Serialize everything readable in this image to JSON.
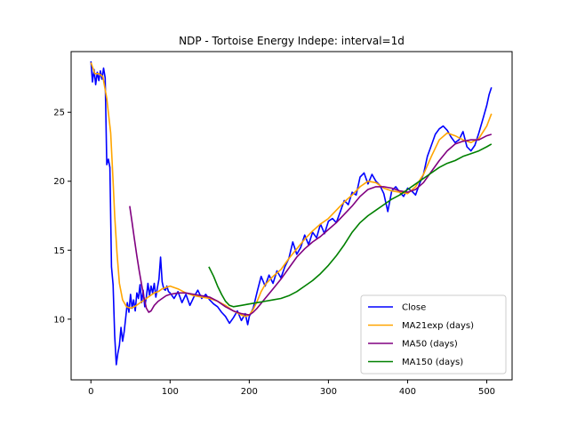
{
  "chart_data": {
    "type": "line",
    "title": "NDP - Tortoise Energy Indepe: interval=1d",
    "xlabel": "",
    "ylabel": "",
    "xlim": [
      -25,
      532
    ],
    "ylim": [
      5.6,
      29.4
    ],
    "xticks": [
      0,
      100,
      200,
      300,
      400,
      500
    ],
    "yticks": [
      10,
      15,
      20,
      25
    ],
    "grid": false,
    "legend_position": "lower right",
    "series": [
      {
        "name": "Close",
        "color": "#0000ff",
        "x": [
          0,
          2,
          4,
          6,
          8,
          10,
          12,
          14,
          16,
          18,
          20,
          22,
          24,
          26,
          28,
          30,
          32,
          34,
          36,
          38,
          40,
          42,
          44,
          46,
          48,
          50,
          52,
          54,
          56,
          58,
          60,
          62,
          64,
          66,
          68,
          70,
          72,
          74,
          76,
          78,
          80,
          82,
          84,
          86,
          88,
          90,
          92,
          94,
          96,
          98,
          100,
          105,
          110,
          115,
          120,
          125,
          130,
          135,
          140,
          145,
          150,
          155,
          160,
          165,
          170,
          175,
          180,
          185,
          190,
          195,
          198,
          200,
          205,
          210,
          215,
          220,
          225,
          230,
          235,
          240,
          245,
          250,
          255,
          260,
          265,
          270,
          275,
          280,
          285,
          290,
          295,
          300,
          305,
          310,
          315,
          320,
          325,
          330,
          335,
          340,
          345,
          350,
          355,
          360,
          365,
          370,
          375,
          380,
          385,
          390,
          395,
          400,
          405,
          410,
          415,
          420,
          425,
          430,
          435,
          440,
          445,
          450,
          455,
          460,
          465,
          470,
          475,
          480,
          485,
          490,
          495,
          500,
          503,
          506
        ],
        "y": [
          28.7,
          27.2,
          28.1,
          27.0,
          27.9,
          27.3,
          28.0,
          27.4,
          28.2,
          27.5,
          21.2,
          21.6,
          21.0,
          13.8,
          12.5,
          8.8,
          6.7,
          7.5,
          8.1,
          9.4,
          8.4,
          9.1,
          10.1,
          11.2,
          10.5,
          11.8,
          10.8,
          11.4,
          10.6,
          11.9,
          11.5,
          12.5,
          11.2,
          12.1,
          10.9,
          11.6,
          12.6,
          11.7,
          12.4,
          11.9,
          12.6,
          11.6,
          12.3,
          12.9,
          14.5,
          12.7,
          12.2,
          12.1,
          12.4,
          12.0,
          11.9,
          11.5,
          12.0,
          11.2,
          11.8,
          11.0,
          11.6,
          12.1,
          11.5,
          11.8,
          11.4,
          11.1,
          10.9,
          10.5,
          10.2,
          9.7,
          10.1,
          10.6,
          9.9,
          10.4,
          9.6,
          10.2,
          10.8,
          12.0,
          13.1,
          12.4,
          13.2,
          12.6,
          13.5,
          13.0,
          13.8,
          14.4,
          15.6,
          14.7,
          15.2,
          16.1,
          15.4,
          16.3,
          15.9,
          16.9,
          16.2,
          17.1,
          17.3,
          17.0,
          17.8,
          18.6,
          18.3,
          19.2,
          19.0,
          20.3,
          20.6,
          19.8,
          20.5,
          20.0,
          19.7,
          19.1,
          17.8,
          19.3,
          19.6,
          19.2,
          18.9,
          19.5,
          19.3,
          19.0,
          19.8,
          20.5,
          21.8,
          22.6,
          23.4,
          23.8,
          24.0,
          23.7,
          23.2,
          22.8,
          23.0,
          23.6,
          22.5,
          22.2,
          22.6,
          23.5,
          24.5,
          25.5,
          26.3,
          26.8
        ]
      },
      {
        "name": "MA21exp (days)",
        "color": "#ffa500",
        "x": [
          0,
          5,
          10,
          15,
          20,
          25,
          28,
          30,
          33,
          36,
          40,
          45,
          50,
          55,
          60,
          65,
          70,
          75,
          80,
          85,
          90,
          95,
          100,
          110,
          120,
          130,
          140,
          150,
          160,
          170,
          180,
          190,
          195,
          200,
          205,
          210,
          215,
          220,
          230,
          240,
          250,
          260,
          270,
          280,
          290,
          300,
          310,
          320,
          330,
          340,
          350,
          360,
          370,
          380,
          390,
          400,
          410,
          420,
          430,
          440,
          450,
          460,
          470,
          480,
          490,
          500,
          506
        ],
        "y": [
          28.6,
          27.8,
          27.8,
          27.6,
          26.0,
          23.5,
          20.0,
          17.5,
          14.8,
          12.6,
          11.4,
          10.9,
          10.8,
          10.9,
          11.1,
          11.3,
          11.5,
          11.7,
          11.9,
          12.0,
          12.2,
          12.3,
          12.4,
          12.2,
          11.9,
          11.7,
          11.6,
          11.5,
          11.3,
          11.0,
          10.6,
          10.3,
          10.2,
          10.3,
          10.7,
          11.3,
          12.0,
          12.5,
          13.1,
          13.6,
          14.4,
          15.1,
          15.8,
          16.4,
          16.9,
          17.3,
          17.9,
          18.5,
          19.0,
          19.6,
          20.0,
          19.9,
          19.5,
          19.3,
          19.2,
          19.1,
          19.6,
          20.5,
          21.8,
          23.0,
          23.5,
          23.3,
          23.0,
          22.8,
          23.1,
          24.0,
          24.9
        ]
      },
      {
        "name": "MA50 (days)",
        "color": "#800080",
        "x": [
          49,
          52,
          55,
          58,
          61,
          64,
          67,
          70,
          73,
          76,
          80,
          85,
          90,
          95,
          100,
          110,
          120,
          130,
          140,
          150,
          160,
          170,
          180,
          190,
          200,
          205,
          210,
          220,
          230,
          240,
          250,
          260,
          270,
          280,
          290,
          300,
          310,
          320,
          330,
          340,
          350,
          360,
          370,
          380,
          390,
          400,
          410,
          420,
          430,
          440,
          450,
          460,
          470,
          480,
          490,
          500,
          506
        ],
        "y": [
          18.2,
          17.0,
          15.8,
          14.6,
          13.5,
          12.5,
          11.6,
          10.8,
          10.5,
          10.6,
          11.0,
          11.3,
          11.5,
          11.7,
          11.8,
          11.9,
          11.9,
          11.8,
          11.7,
          11.6,
          11.3,
          10.9,
          10.6,
          10.4,
          10.3,
          10.5,
          10.8,
          11.5,
          12.2,
          12.9,
          13.7,
          14.5,
          15.1,
          15.6,
          16.0,
          16.5,
          17.0,
          17.6,
          18.2,
          18.9,
          19.4,
          19.6,
          19.6,
          19.5,
          19.3,
          19.2,
          19.4,
          19.9,
          20.7,
          21.5,
          22.2,
          22.7,
          22.9,
          23.0,
          23.0,
          23.3,
          23.4
        ]
      },
      {
        "name": "MA150 (days)",
        "color": "#008000",
        "x": [
          149,
          155,
          160,
          165,
          170,
          175,
          180,
          190,
          200,
          210,
          220,
          230,
          240,
          250,
          260,
          270,
          280,
          290,
          300,
          310,
          320,
          330,
          340,
          350,
          360,
          370,
          380,
          390,
          400,
          410,
          420,
          430,
          440,
          450,
          460,
          470,
          480,
          490,
          500,
          506
        ],
        "y": [
          13.8,
          13.1,
          12.4,
          11.8,
          11.3,
          11.0,
          10.9,
          11.0,
          11.1,
          11.2,
          11.3,
          11.4,
          11.5,
          11.7,
          12.0,
          12.4,
          12.8,
          13.3,
          13.9,
          14.6,
          15.4,
          16.3,
          17.0,
          17.5,
          17.9,
          18.3,
          18.7,
          19.0,
          19.4,
          19.8,
          20.2,
          20.6,
          21.0,
          21.3,
          21.5,
          21.8,
          22.0,
          22.2,
          22.5,
          22.7
        ]
      }
    ]
  }
}
